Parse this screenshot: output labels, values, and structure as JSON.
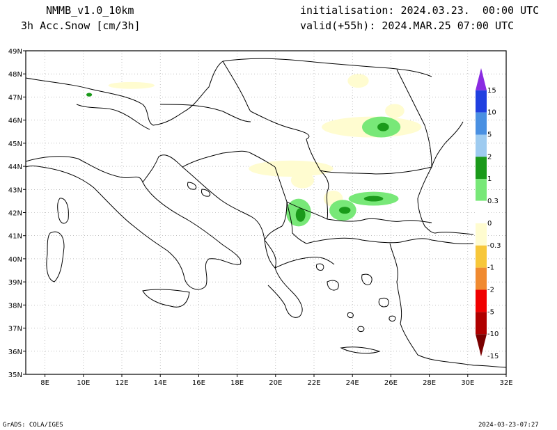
{
  "header": {
    "model": "NMMB_v1.0_10km",
    "variable": "3h Acc.Snow [cm/3h]",
    "init": "initialisation: 2024.03.23.  00:00 UTC",
    "valid": "valid(+55h): 2024.MAR.25 07:00 UTC"
  },
  "footer": {
    "credit": "GrADS: COLA/IGES",
    "timestamp": "2024-03-23-07:27"
  },
  "axes": {
    "lat_labels": [
      "49N",
      "48N",
      "47N",
      "46N",
      "45N",
      "44N",
      "43N",
      "42N",
      "41N",
      "40N",
      "39N",
      "38N",
      "37N",
      "36N",
      "35N"
    ],
    "lon_labels": [
      "8E",
      "10E",
      "12E",
      "14E",
      "16E",
      "18E",
      "20E",
      "22E",
      "24E",
      "26E",
      "28E",
      "30E",
      "32E"
    ],
    "lat_range": [
      35,
      49
    ],
    "lon_range": [
      7,
      32
    ]
  },
  "colorbar": {
    "labels": [
      "15",
      "10",
      "5",
      "2",
      "1",
      "0.3",
      "0",
      "-0.3",
      "-1",
      "-2",
      "-5",
      "-10",
      "-15"
    ],
    "colors": [
      "#8a2be2",
      "#2040e0",
      "#4a90e2",
      "#9ecbf0",
      "#1a9a1a",
      "#78e878",
      "#ffffff",
      "#fffcd0",
      "#f7c73a",
      "#f08a30",
      "#f00000",
      "#b00000",
      "#7a0000"
    ]
  },
  "snow_areas": [
    {
      "level": "light",
      "color": "#fffcd0",
      "lon": 24.3,
      "lat": 47.7,
      "rx": 0.55,
      "ry": 0.3
    },
    {
      "level": "light",
      "color": "#fffcd0",
      "lon": 25.0,
      "lat": 45.7,
      "rx": 2.6,
      "ry": 0.45
    },
    {
      "level": "light",
      "color": "#fffcd0",
      "lon": 26.2,
      "lat": 46.4,
      "rx": 0.5,
      "ry": 0.3
    },
    {
      "level": "light",
      "color": "#fffcd0",
      "lon": 20.8,
      "lat": 43.9,
      "rx": 2.2,
      "ry": 0.35
    },
    {
      "level": "light",
      "color": "#fffcd0",
      "lon": 21.4,
      "lat": 43.4,
      "rx": 0.6,
      "ry": 0.35
    },
    {
      "level": "light",
      "color": "#fffcd0",
      "lon": 23.0,
      "lat": 42.6,
      "rx": 0.5,
      "ry": 0.35
    },
    {
      "level": "light",
      "color": "#fffcd0",
      "lon": 12.5,
      "lat": 47.5,
      "rx": 1.2,
      "ry": 0.15
    },
    {
      "level": "moderate",
      "color": "#78e878",
      "lon": 25.5,
      "lat": 45.7,
      "rx": 1.0,
      "ry": 0.45
    },
    {
      "level": "moderate",
      "color": "#78e878",
      "lon": 25.1,
      "lat": 42.6,
      "rx": 1.3,
      "ry": 0.3
    },
    {
      "level": "moderate",
      "color": "#78e878",
      "lon": 21.2,
      "lat": 42.0,
      "rx": 0.65,
      "ry": 0.6
    },
    {
      "level": "moderate",
      "color": "#78e878",
      "lon": 23.5,
      "lat": 42.1,
      "rx": 0.7,
      "ry": 0.45
    },
    {
      "level": "heavy",
      "color": "#1a9a1a",
      "lon": 25.6,
      "lat": 45.7,
      "rx": 0.3,
      "ry": 0.18
    },
    {
      "level": "heavy",
      "color": "#1a9a1a",
      "lon": 25.1,
      "lat": 42.6,
      "rx": 0.5,
      "ry": 0.12
    },
    {
      "level": "heavy",
      "color": "#1a9a1a",
      "lon": 21.3,
      "lat": 41.9,
      "rx": 0.25,
      "ry": 0.3
    },
    {
      "level": "heavy",
      "color": "#1a9a1a",
      "lon": 23.6,
      "lat": 42.1,
      "rx": 0.3,
      "ry": 0.15
    },
    {
      "level": "heavy",
      "color": "#1a9a1a",
      "lon": 10.3,
      "lat": 47.1,
      "rx": 0.15,
      "ry": 0.08
    }
  ]
}
